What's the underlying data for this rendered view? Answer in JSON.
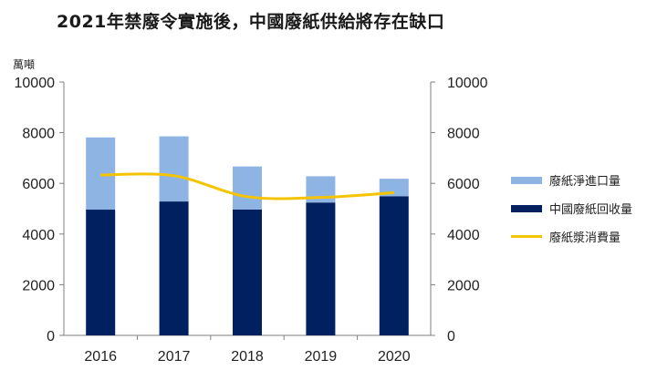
{
  "title": "2021年禁廢令實施後，中國廢紙供給將存在缺口",
  "unit_label": "萬噸",
  "colors": {
    "import": "#8eb4e3",
    "domestic": "#002060",
    "consumption": "#f5c400",
    "axis": "#7f7f7f"
  },
  "legend": [
    {
      "label": "廢紙淨進口量",
      "color": "#8eb4e3",
      "kind": "bar"
    },
    {
      "label": "中國廢紙回收量",
      "color": "#002060",
      "kind": "bar"
    },
    {
      "label": "廢紙漿消費量",
      "color": "#f5c400",
      "kind": "line"
    }
  ],
  "chart_data": {
    "type": "bar",
    "stacked": true,
    "title": "2021年禁廢令實施後，中國廢紙供給將存在缺口",
    "ylabel": "萬噸",
    "categories": [
      "2016",
      "2017",
      "2018",
      "2019",
      "2020"
    ],
    "ylim": [
      0,
      10000
    ],
    "yticks": [
      "0",
      "2000",
      "4000",
      "6000",
      "8000",
      "10000"
    ],
    "y2lim": [
      0,
      10000
    ],
    "y2ticks": [
      "0",
      "2000",
      "4000",
      "6000",
      "8000",
      "10000"
    ],
    "legend_position": "right",
    "grid": false,
    "series": [
      {
        "name": "中國廢紙回收量",
        "type": "bar",
        "values": [
          4963,
          5285,
          4964,
          5244,
          5493
        ]
      },
      {
        "name": "廢紙淨進口量",
        "type": "bar",
        "values": [
          2850,
          2572,
          1703,
          1036,
          689
        ]
      },
      {
        "name": "廢紙漿消費量",
        "type": "line",
        "values": [
          6329,
          6302,
          5474,
          5443,
          5632
        ]
      }
    ]
  }
}
